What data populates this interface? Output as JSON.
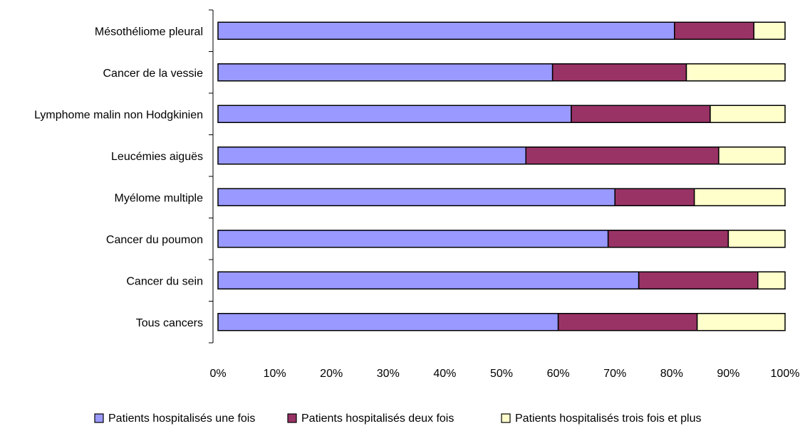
{
  "chart_data": {
    "type": "bar",
    "orientation": "horizontal",
    "stacked": "percent",
    "categories": [
      "Mésothéliome pleural",
      "Cancer de la vessie",
      "Lymphome malin non Hodgkinien",
      "Leucémies aiguës",
      "Myélome multiple",
      "Cancer du poumon",
      "Cancer du sein",
      "Tous cancers"
    ],
    "series": [
      {
        "name": "Patients hospitalisés une fois",
        "color": "#9999ff",
        "values": [
          80.5,
          59,
          62.3,
          54.3,
          70,
          68.8,
          74.2,
          60
        ]
      },
      {
        "name": "Patients hospitalisés deux fois",
        "color": "#993366",
        "values": [
          14,
          23.6,
          24.5,
          34,
          14,
          21.2,
          21,
          24.5
        ]
      },
      {
        "name": "Patients hospitalisés trois fois et plus",
        "color": "#ffffcc",
        "values": [
          5.5,
          17.4,
          13.2,
          11.7,
          16,
          10,
          4.8,
          15.5
        ]
      }
    ],
    "xlim": [
      0,
      100
    ],
    "xticks": [
      "0%",
      "10%",
      "20%",
      "30%",
      "40%",
      "50%",
      "60%",
      "70%",
      "80%",
      "90%",
      "100%"
    ],
    "grid": false,
    "legend_position": "bottom",
    "title": "",
    "xlabel": "",
    "ylabel": ""
  }
}
